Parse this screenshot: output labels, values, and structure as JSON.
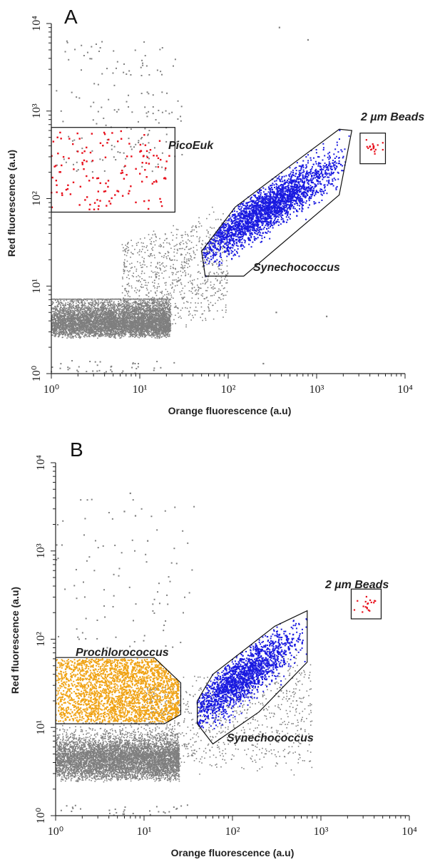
{
  "chart_data": [
    {
      "type": "scatter",
      "panel": "A",
      "xlabel": "Orange fluorescence (a.u)",
      "ylabel": "Red fluorescence (a.u)",
      "xscale": "log",
      "yscale": "log",
      "xlim": [
        1,
        10000
      ],
      "ylim": [
        1,
        10000
      ],
      "x_ticks": [
        "10⁰",
        "10¹",
        "10²",
        "10³",
        "10⁴"
      ],
      "y_ticks": [
        "10⁰",
        "10¹",
        "10²",
        "10³",
        "10⁴"
      ],
      "grid": false,
      "colors": {
        "background_events": "#7f7f7f",
        "PicoEuk": "#e8101c",
        "Synechococcus": "#1a1ae0",
        "2 µm Beads": "#e8101c"
      },
      "gates": [
        {
          "label": "PicoEuk",
          "shape": "rectangle",
          "color": "#e8101c",
          "x_range": [
            1,
            25
          ],
          "y_range": [
            70,
            650
          ]
        },
        {
          "label": "Synechococcus",
          "shape": "polygon",
          "color": "#1a1ae0",
          "vertices": [
            [
              55,
              13
            ],
            [
              150,
              13
            ],
            [
              1800,
              110
            ],
            [
              2500,
              600
            ],
            [
              1800,
              620
            ],
            [
              400,
              200
            ],
            [
              120,
              80
            ],
            [
              50,
              25
            ]
          ]
        },
        {
          "label": "2 µm Beads",
          "shape": "rectangle",
          "color": "#e8101c",
          "x_range": [
            3100,
            6000
          ],
          "y_range": [
            250,
            560
          ]
        }
      ],
      "series": [
        {
          "name": "PicoEuk",
          "n": 140,
          "x_range": [
            1,
            22
          ],
          "y_range": [
            75,
            600
          ]
        },
        {
          "name": "Synechococcus",
          "n": 2600,
          "x_center": 260,
          "y_center": 75,
          "spread": 0.35
        },
        {
          "name": "2 µm Beads",
          "n": 20,
          "x_center": 4500,
          "y_center": 380
        }
      ]
    },
    {
      "type": "scatter",
      "panel": "B",
      "xlabel": "Orange fluorescence (a.u)",
      "ylabel": "Red fluorescence (a.u)",
      "xscale": "log",
      "yscale": "log",
      "xlim": [
        1,
        10000
      ],
      "ylim": [
        1,
        10000
      ],
      "x_ticks": [
        "10⁰",
        "10¹",
        "10²",
        "10³",
        "10⁴"
      ],
      "y_ticks": [
        "10⁰",
        "10¹",
        "10²",
        "10³",
        "10⁴"
      ],
      "grid": false,
      "colors": {
        "background_events": "#7f7f7f",
        "Prochlorococcus": "#f0a315",
        "Synechococcus": "#1a1ae0",
        "2 µm Beads": "#e8101c"
      },
      "gates": [
        {
          "label": "Prochlorococcus",
          "shape": "polygon",
          "color": "#f0a315",
          "vertices": [
            [
              1,
              11
            ],
            [
              17,
              11
            ],
            [
              26,
              14
            ],
            [
              26,
              32
            ],
            [
              13,
              62
            ],
            [
              1,
              62
            ]
          ]
        },
        {
          "label": "Synechococcus",
          "shape": "polygon",
          "color": "#1a1ae0",
          "vertices": [
            [
              40,
              11
            ],
            [
              60,
              6.5
            ],
            [
              200,
              15
            ],
            [
              700,
              55
            ],
            [
              700,
              210
            ],
            [
              300,
              140
            ],
            [
              60,
              40
            ],
            [
              40,
              20
            ]
          ]
        },
        {
          "label": "2 µm Beads",
          "shape": "rectangle",
          "color": "#e8101c",
          "x_range": [
            2200,
            4800
          ],
          "y_range": [
            170,
            370
          ]
        }
      ],
      "series": [
        {
          "name": "Prochlorococcus",
          "n": 2600,
          "x_range": [
            1,
            23
          ],
          "y_range": [
            11.5,
            60
          ]
        },
        {
          "name": "Synechococcus",
          "n": 1800,
          "x_center": 120,
          "y_center": 35,
          "spread": 0.3
        },
        {
          "name": "2 µm Beads",
          "n": 18,
          "x_center": 3300,
          "y_center": 250
        }
      ]
    }
  ],
  "labels": {
    "panel_a": "A",
    "panel_b": "B",
    "picoeuk": "PicoEuk",
    "beads_a": "2 µm Beads",
    "synechococcus_a": "Synechococcus",
    "prochlorococcus": "Prochlorococcus",
    "beads_b": "2 µm Beads",
    "synechococcus_b": "Synechococcus",
    "xlabel_a": "Orange fluorescence (a.u)",
    "ylabel_a": "Red fluorescence (a.u)",
    "xlabel_b": "Orange fluorescence (a.u)",
    "ylabel_b": "Red fluorescence (a.u)"
  }
}
